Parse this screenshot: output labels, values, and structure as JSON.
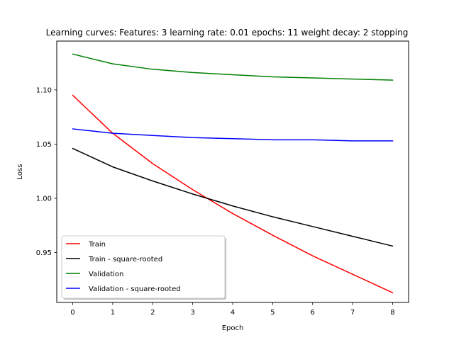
{
  "chart_data": {
    "type": "line",
    "title": "Learning curves: Features: 3 learning rate: 0.01 epochs: 11 weight decay: 2 stopping",
    "xlabel": "Epoch",
    "ylabel": "Loss",
    "x": [
      0,
      1,
      2,
      3,
      4,
      5,
      6,
      7,
      8
    ],
    "xlim": [
      -0.4,
      8.4
    ],
    "ylim": [
      0.904,
      1.145
    ],
    "xticks": [
      0,
      1,
      2,
      3,
      4,
      5,
      6,
      7,
      8
    ],
    "xtick_labels": [
      "0",
      "1",
      "2",
      "3",
      "4",
      "5",
      "6",
      "7",
      "8"
    ],
    "yticks": [
      0.95,
      1.0,
      1.05,
      1.1
    ],
    "ytick_labels": [
      "0.95",
      "1.00",
      "1.05",
      "1.10"
    ],
    "grid": false,
    "legend_position": "lower-left",
    "series": [
      {
        "name": "Train",
        "color": "#ff0000",
        "values": [
          1.095,
          1.06,
          1.032,
          1.008,
          0.986,
          0.966,
          0.947,
          0.93,
          0.913
        ]
      },
      {
        "name": "Train - square-rooted",
        "color": "#000000",
        "values": [
          1.046,
          1.029,
          1.016,
          1.004,
          0.993,
          0.983,
          0.974,
          0.965,
          0.956
        ]
      },
      {
        "name": "Validation",
        "color": "#008000",
        "values": [
          1.133,
          1.124,
          1.119,
          1.116,
          1.114,
          1.112,
          1.111,
          1.11,
          1.109
        ]
      },
      {
        "name": "Validation - square-rooted",
        "color": "#0000ff",
        "values": [
          1.064,
          1.06,
          1.058,
          1.056,
          1.055,
          1.054,
          1.054,
          1.053,
          1.053
        ]
      }
    ]
  }
}
